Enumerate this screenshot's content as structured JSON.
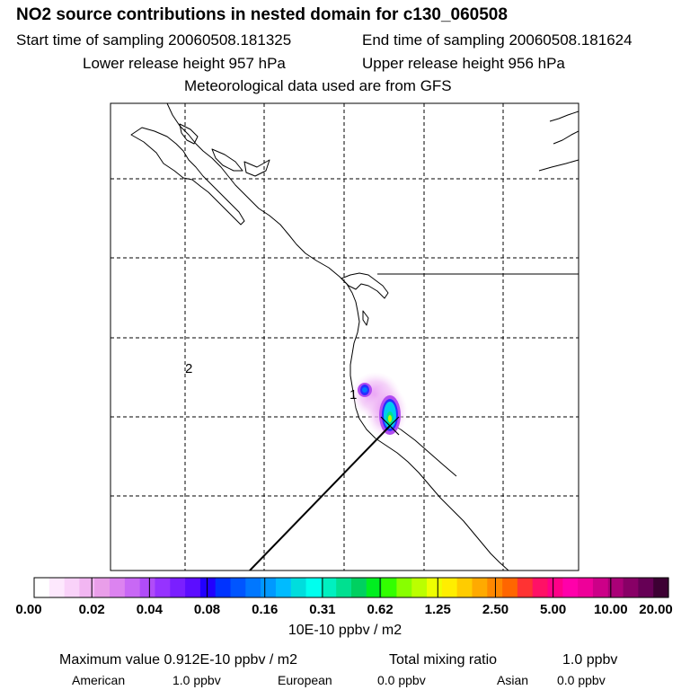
{
  "header": {
    "title": "NO2 source contributions in nested domain for c130_060508",
    "start_label": "Start time of sampling 20060508.181325",
    "end_label": "End time of sampling 20060508.181624",
    "lower_label": "Lower release height  957 hPa",
    "upper_label": "Upper release height  956 hPa",
    "met_label": "Meteorological data used are from GFS"
  },
  "map": {
    "marker_1": "1",
    "marker_2": "2"
  },
  "chart_data": {
    "type": "heatmap",
    "colorbar": {
      "tick_labels": [
        "0.00",
        "0.02",
        "0.04",
        "0.08",
        "0.16",
        "0.31",
        "0.62",
        "1.25",
        "2.50",
        "5.00",
        "10.00",
        "20.00"
      ],
      "colors": [
        "#ffffff",
        "#fde8fd",
        "#f9d2f9",
        "#f2b6f2",
        "#e99ee9",
        "#dc83f0",
        "#c868f5",
        "#b04cf8",
        "#9633ff",
        "#7a1fff",
        "#5c0dff",
        "#2200ff",
        "#0033ff",
        "#0055ff",
        "#0077ff",
        "#0099ff",
        "#00bbff",
        "#00dddd",
        "#00ffee",
        "#00f0c0",
        "#00e090",
        "#00d060",
        "#00ee20",
        "#33ff00",
        "#88ff00",
        "#bbff00",
        "#eeff00",
        "#ffee00",
        "#ffcc00",
        "#ffaa00",
        "#ff8800",
        "#ff6600",
        "#ff3333",
        "#ff1166",
        "#ff0088",
        "#ff00aa",
        "#ee0099",
        "#cc0088",
        "#aa0077",
        "#880066",
        "#660055",
        "#3d0033"
      ],
      "unit": "10E-10 ppbv / m2"
    }
  },
  "footer": {
    "max_label": "Maximum value  0.912E-10 ppbv / m2",
    "mix_label": "Total mixing ratio",
    "mix_value": "1.0 ppbv",
    "american_label": "American",
    "american_value": "1.0 ppbv",
    "european_label": "European",
    "european_value": "0.0 ppbv",
    "asian_label": "Asian",
    "asian_value": "0.0 ppbv"
  }
}
